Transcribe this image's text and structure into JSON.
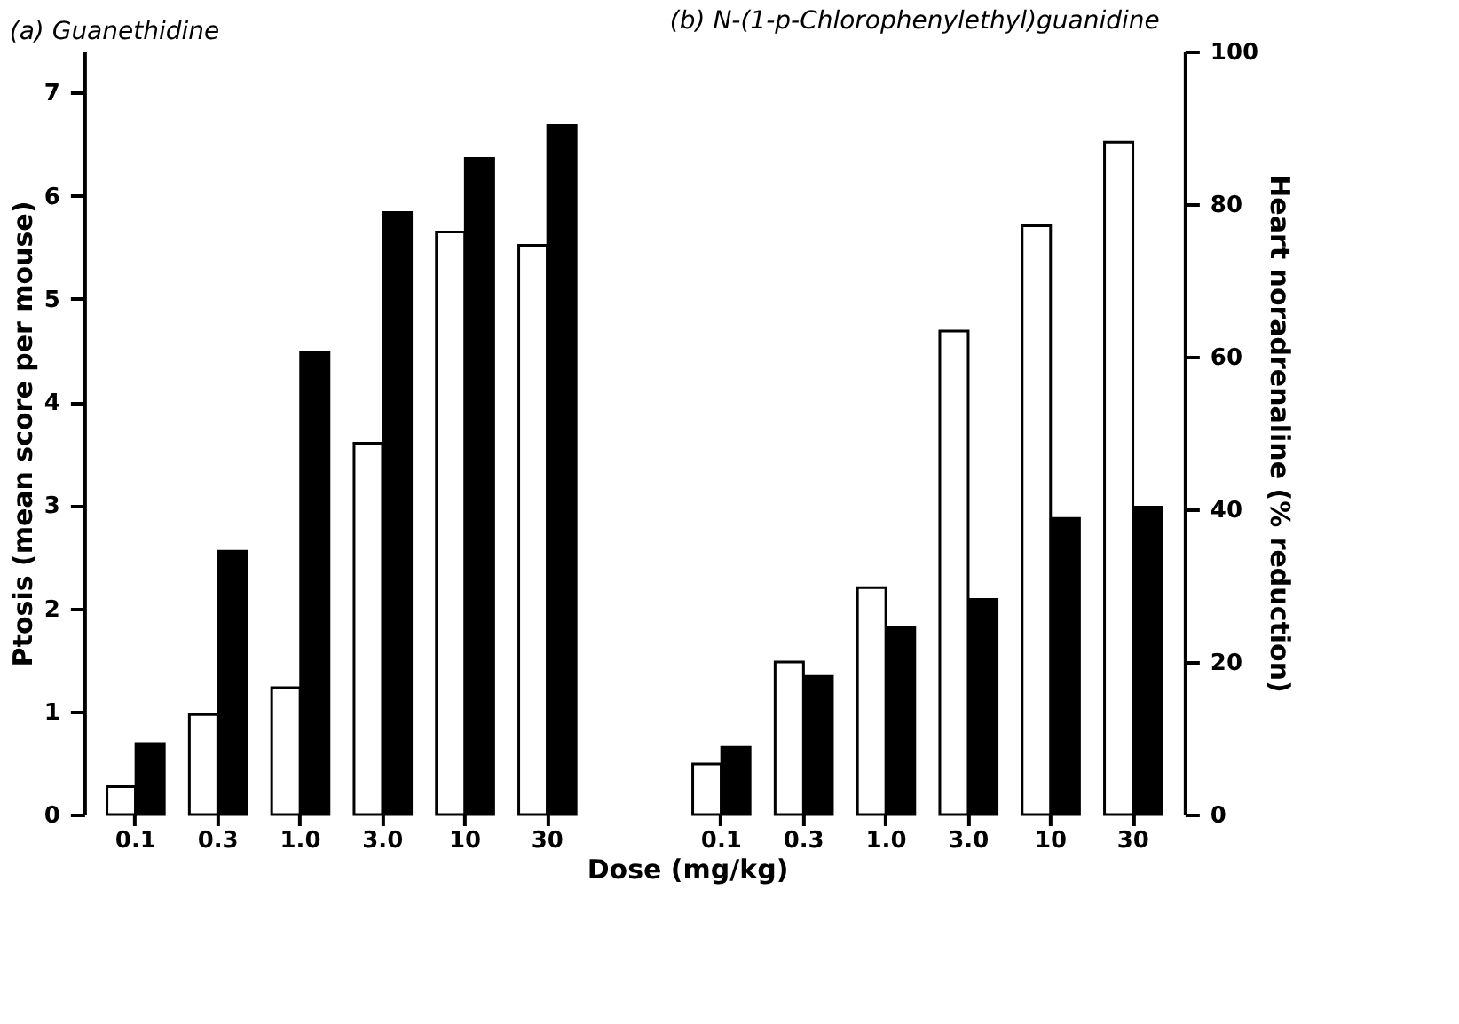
{
  "chart_data": [
    {
      "type": "bar",
      "title": "(a) Guanethidine",
      "xlabel": "Dose (mg/kg)",
      "ylabel": "Ptosis (mean score per mouse)",
      "categories": [
        "0.1",
        "0.3",
        "1.0",
        "3.0",
        "10",
        "30"
      ],
      "series": [
        {
          "color": "#ffffff",
          "values": [
            0.27,
            0.97,
            1.23,
            3.6,
            5.65,
            5.52
          ]
        },
        {
          "color": "#000000",
          "axis": "y2",
          "values": [
            9.3,
            34.5,
            60.6,
            78.9,
            86,
            90.3
          ]
        }
      ],
      "ylim": [
        0,
        7.4
      ],
      "yticks": [
        0,
        1,
        2,
        3,
        4,
        5,
        6,
        7
      ],
      "y2lim": [
        0,
        100
      ],
      "grid": false
    },
    {
      "type": "bar",
      "title": "(b) N-(1-p-Chlorophenylethyl)guanidine",
      "y2label": "Heart noradrenaline (% reduction)",
      "categories": [
        "0.1",
        "0.3",
        "1.0",
        "3.0",
        "10",
        "30"
      ],
      "series": [
        {
          "color": "#ffffff",
          "values": [
            0.49,
            1.48,
            2.2,
            4.69,
            5.71,
            6.52
          ]
        },
        {
          "color": "#000000",
          "axis": "y2",
          "values": [
            8.8,
            18.1,
            24.6,
            28.2,
            38.8,
            40.3
          ]
        }
      ],
      "ylim": [
        0,
        7.4
      ],
      "y2lim": [
        0,
        100
      ],
      "y2ticks": [
        0,
        20,
        40,
        60,
        80,
        100
      ],
      "grid": false
    }
  ]
}
